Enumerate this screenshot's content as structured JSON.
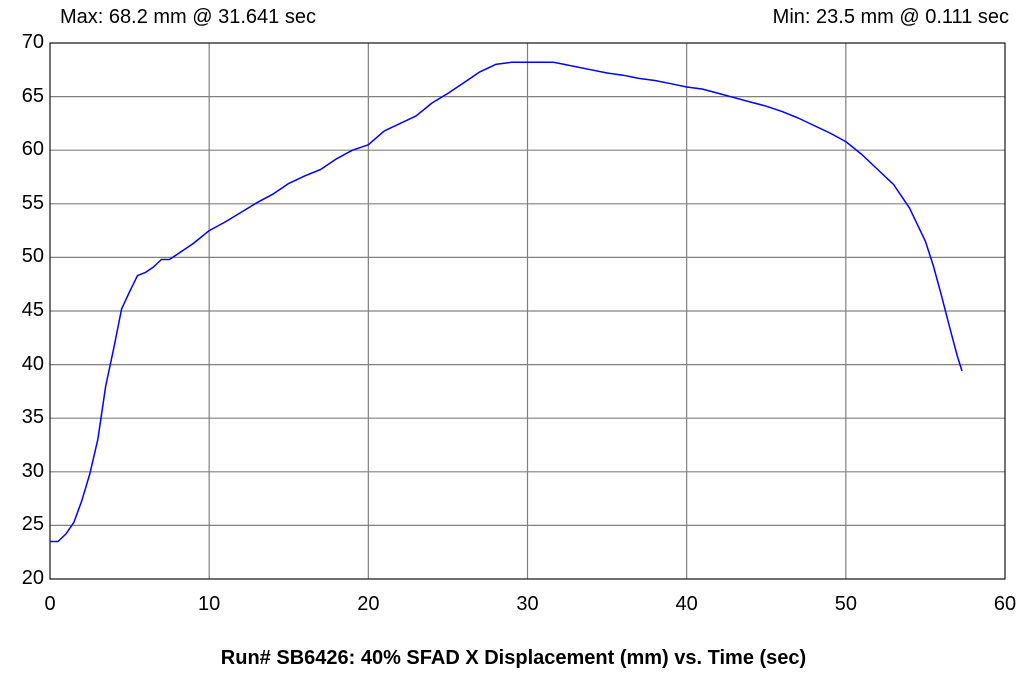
{
  "header": {
    "max_text": "Max: 68.2 mm @ 31.641 sec",
    "min_text": "Min: 23.5 mm @ 0.111 sec"
  },
  "caption": "Run# SB6426:  40%  SFAD X Displacement (mm) vs. Time (sec)",
  "chart_data": {
    "type": "line",
    "title": "Run# SB6426:  40%  SFAD X Displacement (mm) vs. Time (sec)",
    "xlabel": "Time (sec)",
    "ylabel": "SFAD X Displacement (mm)",
    "xlim": [
      0,
      60
    ],
    "ylim": [
      20,
      70
    ],
    "x_ticks": [
      0,
      10,
      20,
      30,
      40,
      50,
      60
    ],
    "y_ticks": [
      20,
      25,
      30,
      35,
      40,
      45,
      50,
      55,
      60,
      65,
      70
    ],
    "grid": true,
    "legend": "none",
    "line_color": "#0000ff",
    "annotations": {
      "max": {
        "value": 68.2,
        "time": 31.641
      },
      "min": {
        "value": 23.5,
        "time": 0.111
      }
    },
    "series": [
      {
        "x": [
          0,
          0.5,
          1,
          1.5,
          2,
          2.5,
          3,
          3.5,
          4,
          4.5,
          5,
          5.5,
          6,
          6.5,
          7,
          7.5,
          8,
          9,
          10,
          11,
          12,
          13,
          14,
          15,
          16,
          17,
          18,
          19,
          20,
          21,
          22,
          23,
          24,
          25,
          26,
          27,
          28,
          29,
          30,
          31,
          31.641,
          32,
          33,
          34,
          35,
          36,
          37,
          38,
          39,
          40,
          41,
          42,
          43,
          44,
          45,
          46,
          47,
          48,
          49,
          50,
          51,
          52,
          53,
          54,
          55,
          55.5,
          56,
          56.5,
          57,
          57.3
        ],
        "y": [
          23.5,
          23.5,
          24.2,
          25.3,
          27.3,
          29.8,
          33,
          38,
          41.5,
          45.2,
          46.8,
          48.3,
          48.6,
          49.1,
          49.8,
          49.8,
          50.3,
          51.3,
          52.5,
          53.3,
          54.2,
          55.1,
          55.9,
          56.9,
          57.6,
          58.2,
          59.2,
          60,
          60.5,
          61.8,
          62.5,
          63.2,
          64.4,
          65.3,
          66.3,
          67.3,
          68,
          68.2,
          68.2,
          68.2,
          68.2,
          68.1,
          67.8,
          67.5,
          67.2,
          67,
          66.7,
          66.5,
          66.2,
          65.9,
          65.7,
          65.3,
          64.9,
          64.5,
          64.1,
          63.6,
          63,
          62.3,
          61.6,
          60.8,
          59.6,
          58.2,
          56.8,
          54.6,
          51.5,
          49.2,
          46.5,
          43.6,
          40.8,
          39.4
        ]
      }
    ]
  }
}
